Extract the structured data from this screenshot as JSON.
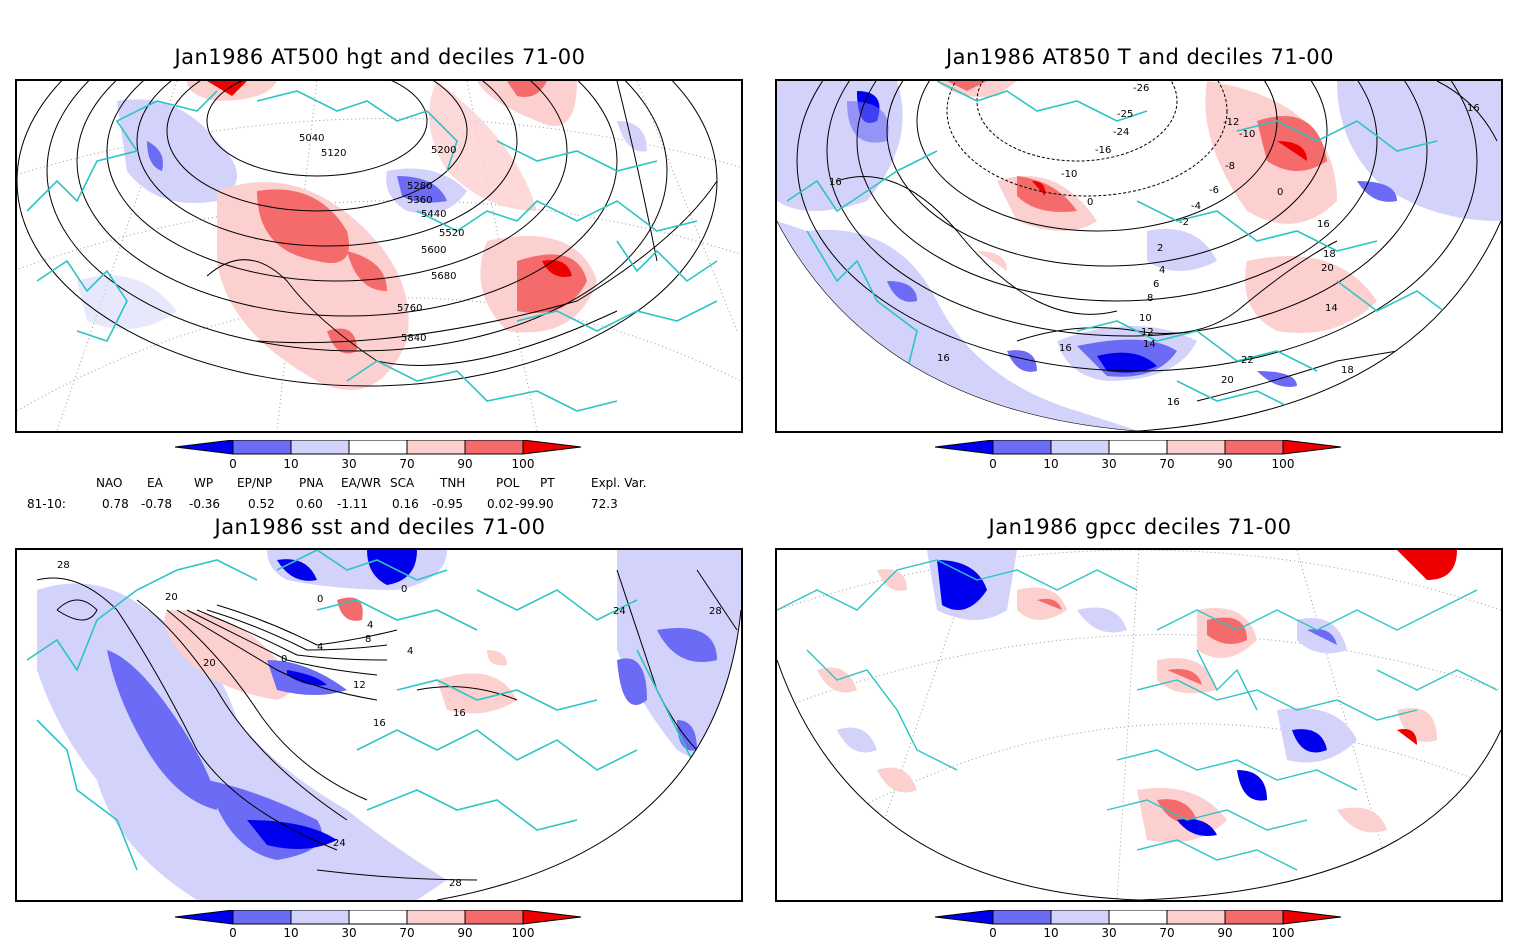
{
  "panels": [
    {
      "title": "Jan1986 AT500 hgt and deciles 71-00",
      "contours": [
        "5040",
        "5120",
        "5200",
        "5280",
        "5360",
        "5440",
        "5520",
        "5600",
        "5680",
        "5760",
        "5840"
      ]
    },
    {
      "title": "Jan1986 AT850 T and deciles 71-00",
      "contours": [
        "-26",
        "-25",
        "-24",
        "-16",
        "-12",
        "-10",
        "-10",
        "-8",
        "-6",
        "-4",
        "-2",
        "0",
        "0",
        "2",
        "4",
        "6",
        "8",
        "10",
        "12",
        "14",
        "14",
        "16",
        "16",
        "16",
        "16",
        "16",
        "16",
        "18",
        "18",
        "20",
        "20",
        "22"
      ]
    },
    {
      "title": "Jan1986 sst and deciles 71-00",
      "contours": [
        "28",
        "20",
        "0",
        "0",
        "4",
        "8",
        "0",
        "4",
        "12",
        "16",
        "20",
        "24",
        "28",
        "24",
        "28",
        "16",
        "4"
      ]
    },
    {
      "title": "Jan1986 gpcc deciles 71-00",
      "contours": []
    }
  ],
  "colorbar": {
    "ticks": [
      "0",
      "10",
      "30",
      "70",
      "90",
      "100"
    ],
    "colors": [
      "#0000ee",
      "#6b6bf5",
      "#d2d2fa",
      "#ffffff",
      "#fdd0d0",
      "#f56b6b",
      "#ee0000"
    ]
  },
  "indices": {
    "row_label": "81-10:",
    "headers": [
      "NAO",
      "EA",
      "WP",
      "EP/NP",
      "PNA",
      "EA/WR",
      "SCA",
      "TNH",
      "POL",
      "PT",
      "Expl. Var."
    ],
    "values": [
      "0.78",
      "-0.78",
      "-0.36",
      "0.52",
      "0.60",
      "-1.11",
      "0.16",
      "-0.95",
      "0.02",
      "-99.90",
      "72.3"
    ]
  },
  "colors": {
    "coast": "#2ec4c4",
    "contour": "#000000",
    "frame": "#000000"
  }
}
